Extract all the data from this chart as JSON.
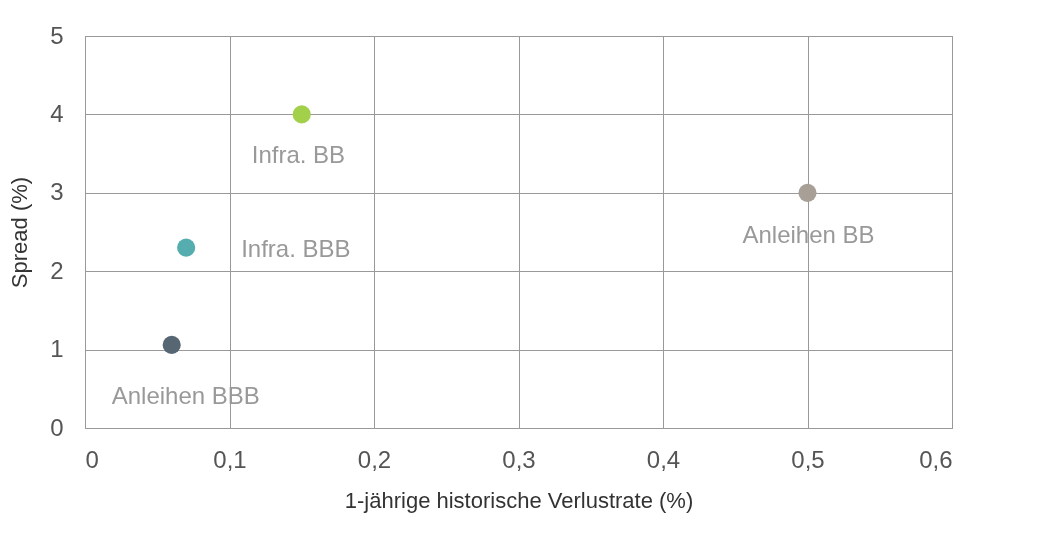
{
  "chart_data": {
    "type": "scatter",
    "xlabel": "1-jährige historische Verlustrate (%)",
    "ylabel": "Spread (%)",
    "series": [
      {
        "name": "Infra. BB",
        "color": "#a3d04a",
        "x": [
          0.15
        ],
        "values": [
          4.0
        ]
      },
      {
        "name": "Infra. BBB",
        "color": "#55adb0",
        "x": [
          0.07
        ],
        "values": [
          2.3
        ]
      },
      {
        "name": "Anleihen BBB",
        "color": "#566672",
        "x": [
          0.06
        ],
        "values": [
          1.06
        ]
      },
      {
        "name": "Anleihen BB",
        "color": "#a89f97",
        "x": [
          0.5
        ],
        "values": [
          3.0
        ]
      }
    ],
    "xlim": [
      0,
      0.6
    ],
    "xticks": [
      0,
      {
        "value": 0.1,
        "label": "0,1"
      },
      {
        "value": 0.2,
        "label": "0,2"
      },
      {
        "value": 0.3,
        "label": "0,3"
      },
      {
        "value": 0.4,
        "label": "0,4"
      },
      {
        "value": 0.5,
        "label": "0,5"
      },
      {
        "value": 0.6,
        "label": "0,6"
      }
    ],
    "ylim": [
      0,
      5
    ],
    "yticks": [
      0,
      1,
      2,
      3,
      4,
      5
    ],
    "grid": true,
    "legend": false,
    "marker": "circle"
  }
}
